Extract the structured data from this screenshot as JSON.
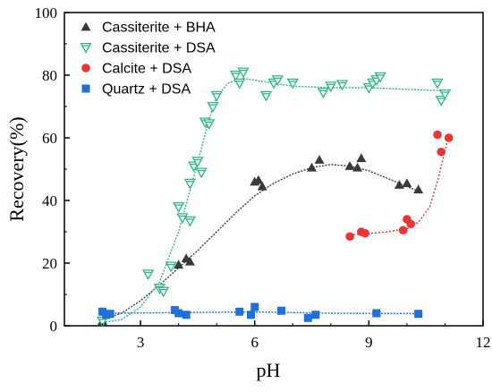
{
  "chart_data": {
    "type": "scatter",
    "title": "",
    "xlabel": "pH",
    "ylabel": "Recovery(%)",
    "xlim": [
      1,
      12
    ],
    "ylim": [
      0,
      100
    ],
    "x_ticks": [
      3,
      6,
      9,
      12
    ],
    "y_ticks": [
      0,
      20,
      40,
      60,
      80,
      100
    ],
    "grid": false,
    "legend_position": "top-left",
    "series": [
      {
        "name": "Cassiterite + BHA",
        "marker": "triangle-up",
        "color": "#3a3a3a",
        "fit_color": "#3a3a3a",
        "points": [
          [
            2.0,
            1.5
          ],
          [
            4.0,
            19.5
          ],
          [
            4.2,
            21.5
          ],
          [
            4.3,
            20.5
          ],
          [
            6.0,
            46.0
          ],
          [
            6.2,
            44.5
          ],
          [
            6.1,
            46.5
          ],
          [
            7.5,
            50.5
          ],
          [
            7.7,
            53.0
          ],
          [
            8.5,
            51.0
          ],
          [
            8.7,
            50.5
          ],
          [
            8.8,
            53.5
          ],
          [
            9.8,
            45.0
          ],
          [
            10.0,
            45.5
          ],
          [
            10.3,
            43.5
          ]
        ],
        "fit": [
          [
            2.0,
            2.0
          ],
          [
            2.5,
            4.0
          ],
          [
            3.0,
            8.0
          ],
          [
            3.5,
            13.0
          ],
          [
            4.0,
            18.5
          ],
          [
            4.5,
            24.0
          ],
          [
            5.0,
            30.0
          ],
          [
            5.5,
            36.0
          ],
          [
            6.0,
            41.5
          ],
          [
            6.5,
            45.5
          ],
          [
            7.0,
            48.5
          ],
          [
            7.5,
            50.5
          ],
          [
            8.0,
            51.5
          ],
          [
            8.5,
            51.0
          ],
          [
            9.0,
            49.5
          ],
          [
            9.5,
            47.0
          ],
          [
            10.0,
            44.5
          ],
          [
            10.3,
            43.0
          ]
        ]
      },
      {
        "name": "Cassiterite + DSA",
        "marker": "triangle-down",
        "color": "#2fb783",
        "fit_color": "#2fb783",
        "points": [
          [
            2.0,
            1.5
          ],
          [
            3.2,
            16.5
          ],
          [
            3.5,
            12.0
          ],
          [
            3.6,
            11.0
          ],
          [
            3.8,
            19.0
          ],
          [
            4.0,
            38.0
          ],
          [
            4.1,
            34.5
          ],
          [
            4.3,
            33.5
          ],
          [
            4.3,
            45.5
          ],
          [
            4.4,
            51.0
          ],
          [
            4.5,
            52.5
          ],
          [
            4.6,
            49.0
          ],
          [
            4.7,
            65.0
          ],
          [
            4.8,
            64.5
          ],
          [
            4.9,
            70.0
          ],
          [
            5.0,
            73.5
          ],
          [
            5.5,
            80.0
          ],
          [
            5.6,
            77.5
          ],
          [
            5.7,
            81.0
          ],
          [
            6.3,
            73.5
          ],
          [
            6.5,
            77.5
          ],
          [
            6.6,
            78.5
          ],
          [
            7.0,
            77.5
          ],
          [
            7.8,
            74.5
          ],
          [
            8.0,
            76.5
          ],
          [
            8.3,
            77.0
          ],
          [
            9.0,
            76.0
          ],
          [
            9.1,
            77.5
          ],
          [
            9.2,
            78.5
          ],
          [
            9.3,
            79.5
          ],
          [
            10.8,
            77.5
          ],
          [
            10.9,
            72.0
          ],
          [
            11.0,
            74.0
          ]
        ],
        "fit": [
          [
            2.0,
            1.0
          ],
          [
            2.5,
            2.0
          ],
          [
            3.0,
            6.0
          ],
          [
            3.5,
            14.0
          ],
          [
            4.0,
            30.0
          ],
          [
            4.5,
            52.0
          ],
          [
            4.8,
            66.0
          ],
          [
            5.0,
            73.0
          ],
          [
            5.3,
            77.5
          ],
          [
            5.7,
            79.0
          ],
          [
            6.2,
            78.0
          ],
          [
            7.0,
            76.5
          ],
          [
            8.0,
            76.0
          ],
          [
            9.0,
            76.0
          ],
          [
            10.0,
            75.5
          ],
          [
            11.0,
            75.0
          ]
        ]
      },
      {
        "name": "Calcite + DSA",
        "marker": "circle",
        "color": "#ee3333",
        "fit_color": "#ee3333",
        "points": [
          [
            8.5,
            28.5
          ],
          [
            8.8,
            30.0
          ],
          [
            8.9,
            29.5
          ],
          [
            9.9,
            30.5
          ],
          [
            10.0,
            34.0
          ],
          [
            10.1,
            32.5
          ],
          [
            10.8,
            61.0
          ],
          [
            10.9,
            55.5
          ],
          [
            11.1,
            60.0
          ]
        ],
        "fit": [
          [
            8.5,
            29.0
          ],
          [
            9.0,
            29.5
          ],
          [
            9.5,
            30.0
          ],
          [
            10.0,
            31.0
          ],
          [
            10.3,
            33.0
          ],
          [
            10.6,
            38.0
          ],
          [
            10.8,
            46.0
          ],
          [
            11.0,
            56.0
          ],
          [
            11.1,
            61.0
          ]
        ]
      },
      {
        "name": "Quartz + DSA",
        "marker": "square",
        "color": "#1f6fdc",
        "fit_color": "#1f6fdc",
        "points": [
          [
            2.0,
            4.5
          ],
          [
            2.1,
            3.5
          ],
          [
            2.2,
            3.8
          ],
          [
            3.9,
            5.0
          ],
          [
            4.0,
            4.0
          ],
          [
            4.2,
            3.5
          ],
          [
            5.6,
            4.5
          ],
          [
            5.9,
            3.5
          ],
          [
            6.0,
            6.0
          ],
          [
            6.7,
            4.8
          ],
          [
            7.4,
            2.5
          ],
          [
            7.6,
            3.5
          ],
          [
            9.2,
            4.0
          ],
          [
            10.3,
            3.8
          ]
        ],
        "fit": [
          [
            2.0,
            4.0
          ],
          [
            4.0,
            4.2
          ],
          [
            6.0,
            4.4
          ],
          [
            8.0,
            4.0
          ],
          [
            10.3,
            3.9
          ]
        ]
      }
    ]
  }
}
